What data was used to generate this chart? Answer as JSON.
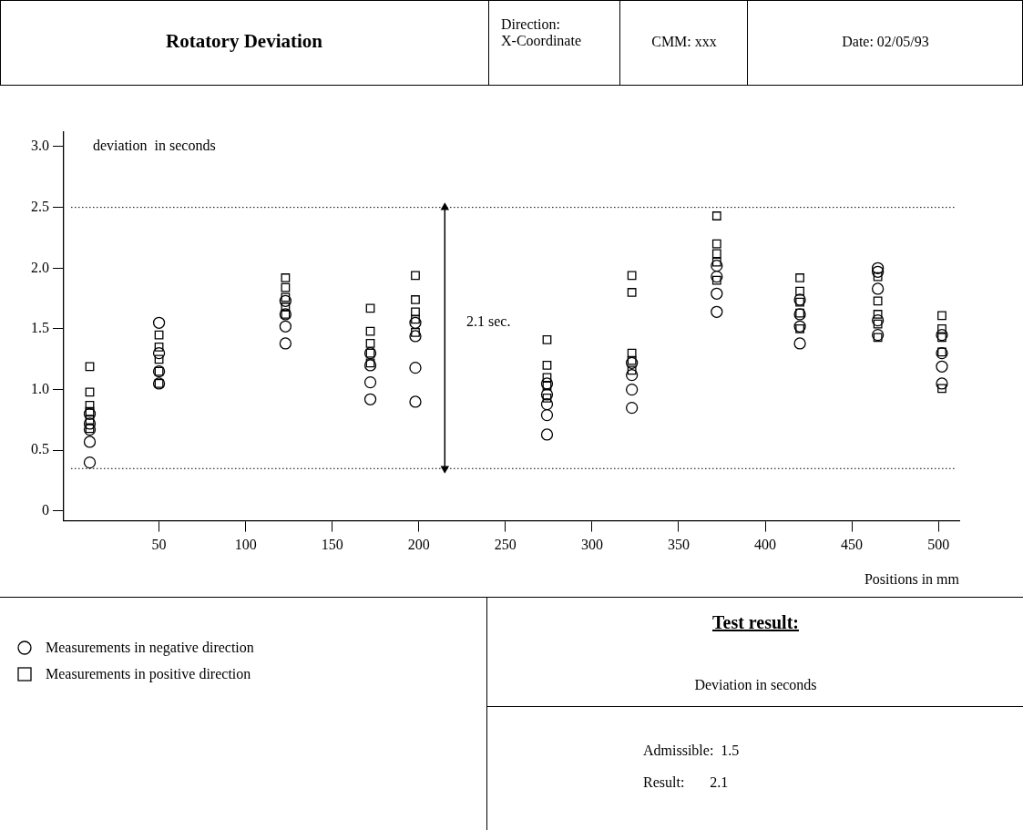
{
  "chart_data": {
    "type": "scatter",
    "title": "Rotatory Deviation",
    "ylabel": "deviation  in seconds",
    "xlabel": "Positions in mm",
    "xlim": [
      -5,
      512
    ],
    "xticks": [
      50,
      100,
      150,
      200,
      250,
      300,
      350,
      400,
      450,
      500
    ],
    "ylim": [
      -0.08,
      3.12
    ],
    "yticks": [
      {
        "value": 0,
        "label": "0"
      },
      {
        "value": 0.5,
        "label": "0.5"
      },
      {
        "value": 1,
        "label": "1.0"
      },
      {
        "value": 1.5,
        "label": "1.5"
      },
      {
        "value": 2,
        "label": "2.0"
      },
      {
        "value": 2.5,
        "label": "2.5"
      },
      {
        "value": 3,
        "label": "3.0"
      }
    ],
    "grid": false,
    "legend": "bottom left",
    "series": [
      {
        "name": "Measurements in negative direction",
        "color": "#000000",
        "marker": "circle",
        "x": [
          10,
          10,
          10,
          10,
          10,
          50,
          50,
          50,
          50,
          123,
          123,
          123,
          123,
          172,
          172,
          172,
          172,
          198,
          198,
          198,
          198,
          274,
          274,
          274,
          274,
          274,
          323,
          323,
          323,
          323,
          372,
          372,
          372,
          372,
          420,
          420,
          420,
          420,
          465,
          465,
          465,
          465,
          465,
          502,
          502,
          502,
          502
        ],
        "values": [
          0.4,
          0.57,
          0.67,
          0.72,
          0.8,
          1.55,
          1.3,
          1.15,
          1.05,
          1.73,
          1.62,
          1.52,
          1.38,
          1.3,
          1.2,
          1.06,
          0.92,
          1.55,
          1.44,
          1.18,
          0.9,
          1.05,
          0.96,
          0.88,
          0.79,
          0.63,
          1.22,
          1.12,
          1.0,
          0.85,
          2.02,
          1.93,
          1.79,
          1.64,
          1.74,
          1.62,
          1.52,
          1.38,
          2.0,
          1.97,
          1.83,
          1.57,
          1.45,
          1.45,
          1.3,
          1.19,
          1.05
        ]
      },
      {
        "name": "Measurements in positive direction",
        "color": "#000000",
        "marker": "square",
        "x": [
          10,
          10,
          10,
          10,
          10,
          10,
          50,
          50,
          50,
          50,
          50,
          123,
          123,
          123,
          123,
          123,
          172,
          172,
          172,
          172,
          172,
          198,
          198,
          198,
          198,
          198,
          274,
          274,
          274,
          274,
          274,
          323,
          323,
          323,
          323,
          323,
          372,
          372,
          372,
          372,
          372,
          420,
          420,
          420,
          420,
          420,
          465,
          465,
          465,
          465,
          465,
          502,
          502,
          502,
          502,
          502
        ],
        "values": [
          1.19,
          0.98,
          0.87,
          0.82,
          0.75,
          0.68,
          1.45,
          1.35,
          1.25,
          1.15,
          1.05,
          1.92,
          1.84,
          1.76,
          1.68,
          1.62,
          1.67,
          1.48,
          1.38,
          1.3,
          1.22,
          1.94,
          1.74,
          1.64,
          1.58,
          1.47,
          1.41,
          1.2,
          1.1,
          1.03,
          0.93,
          1.94,
          1.8,
          1.3,
          1.24,
          1.16,
          2.43,
          2.2,
          2.12,
          2.05,
          1.9,
          1.92,
          1.81,
          1.72,
          1.63,
          1.5,
          1.93,
          1.73,
          1.62,
          1.54,
          1.43,
          1.61,
          1.5,
          1.43,
          1.31,
          1.01
        ]
      },
      {
        "type": "line",
        "color": "#000000",
        "marker": "triangle",
        "line_style": "solid",
        "x": [
          215,
          215
        ],
        "values": [
          2.5,
          0.35
        ]
      }
    ],
    "ref_lines": [
      {
        "axis": "y",
        "value": 2.5,
        "line_style": "dotted",
        "color": "#000000"
      },
      {
        "axis": "y",
        "value": 0.35,
        "line_style": "dotted",
        "color": "#000000"
      }
    ],
    "annotations": [
      "Direction:\nX-Coordinate",
      "CMM: xxx",
      "Date: 02/05/93",
      "2.1 sec.",
      "Test result:",
      "Deviation in seconds",
      "Admissible:  1.5",
      "Result:       2.1"
    ]
  }
}
